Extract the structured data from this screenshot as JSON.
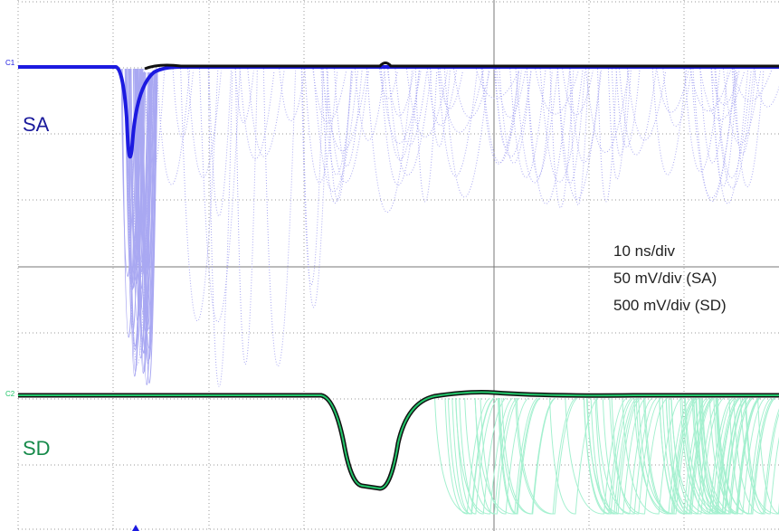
{
  "channels": {
    "sa": {
      "marker": "C1",
      "label": "SA"
    },
    "sd": {
      "marker": "C2",
      "label": "SD"
    }
  },
  "settings": {
    "timebase": "10 ns/div",
    "sa_scale": "50 mV/div (SA)",
    "sd_scale": "500 mV/div (SD)"
  }
}
